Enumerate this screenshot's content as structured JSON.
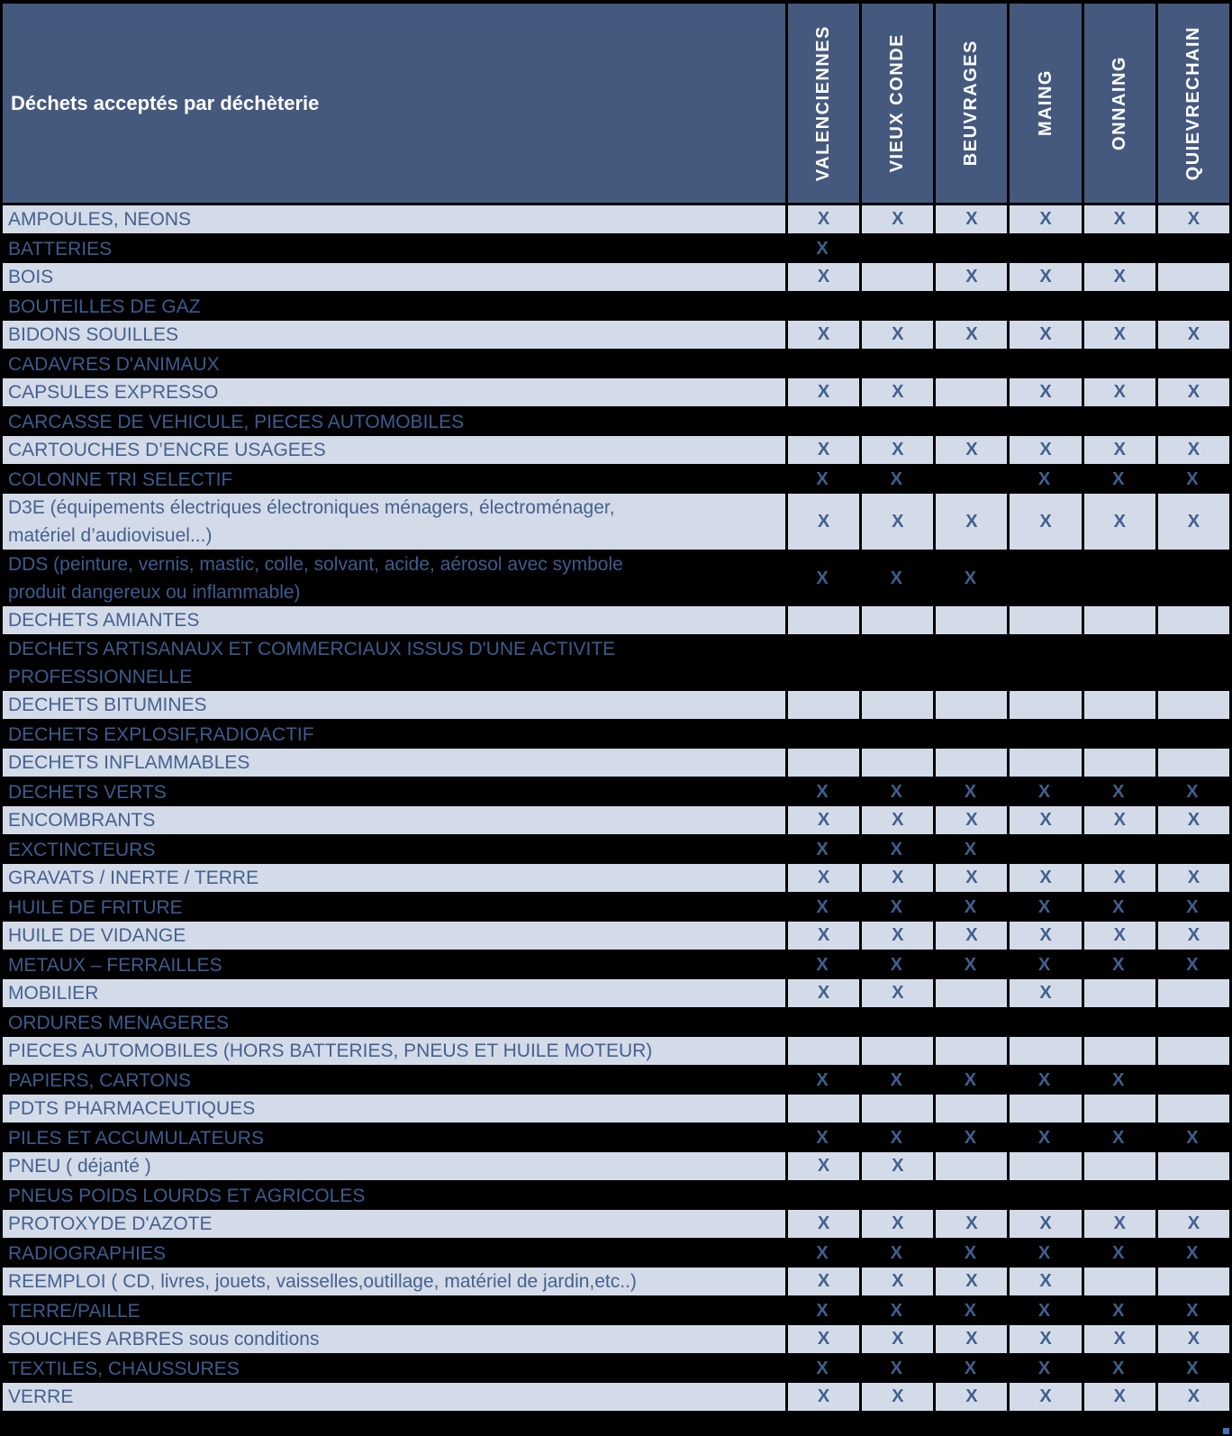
{
  "table": {
    "title": "Déchets acceptés par déchèterie",
    "mark": "X",
    "columns": [
      "VALENCIENNES",
      "VIEUX CONDE",
      "BEUVRAGES",
      "MAING",
      "ONNAING",
      "QUIEVRECHAIN"
    ],
    "colors": {
      "header_bg": "#45597E",
      "header_text": "#FFFFFF",
      "light_row_bg": "#D4DBE8",
      "dark_row_bg": "#000000",
      "label_text": "#44618F",
      "mark_text": "#40608F",
      "gridline": "#000000",
      "fill_handle": "#4472C4"
    },
    "rows": [
      {
        "label": "AMPOULES, NEONS",
        "cells": [
          "X",
          "X",
          "X",
          "X",
          "X",
          "X"
        ]
      },
      {
        "label": "BATTERIES",
        "cells": [
          "X",
          "",
          "",
          "",
          "",
          ""
        ]
      },
      {
        "label": "BOIS",
        "cells": [
          "X",
          "",
          "X",
          "X",
          "X",
          ""
        ]
      },
      {
        "label": "BOUTEILLES DE GAZ",
        "cells": [
          "",
          "",
          "",
          "",
          "",
          ""
        ]
      },
      {
        "label": "BIDONS SOUILLES",
        "cells": [
          "X",
          "X",
          "X",
          "X",
          "X",
          "X"
        ]
      },
      {
        "label": "CADAVRES D'ANIMAUX",
        "cells": [
          "",
          "",
          "",
          "",
          "",
          ""
        ]
      },
      {
        "label": "CAPSULES EXPRESSO",
        "cells": [
          "X",
          "X",
          "",
          "X",
          "X",
          "X"
        ]
      },
      {
        "label": "CARCASSE DE VEHICULE, PIECES AUTOMOBILES",
        "cells": [
          "",
          "",
          "",
          "",
          "",
          ""
        ]
      },
      {
        "label": "CARTOUCHES D’ENCRE USAGEES",
        "cells": [
          "X",
          "X",
          "X",
          "X",
          "X",
          "X"
        ]
      },
      {
        "label": "COLONNE TRI SELECTIF",
        "cells": [
          "X",
          "X",
          "",
          "X",
          "X",
          "X"
        ]
      },
      {
        "label": "D3E (équipements électriques électroniques ménagers, électroménager,\nmatériel d’audiovisuel...)",
        "cells": [
          "X",
          "X",
          "X",
          "X",
          "X",
          "X"
        ]
      },
      {
        "label": "DDS (peinture, vernis, mastic, colle, solvant, acide, aérosol avec symbole\nproduit dangereux ou inflammable)",
        "cells": [
          "X",
          "X",
          "X",
          "",
          "",
          ""
        ]
      },
      {
        "label": "DECHETS AMIANTES",
        "cells": [
          "",
          "",
          "",
          "",
          "",
          ""
        ]
      },
      {
        "label": "DECHETS ARTISANAUX ET COMMERCIAUX ISSUS D'UNE ACTIVITE\nPROFESSIONNELLE",
        "cells": [
          "",
          "",
          "",
          "",
          "",
          ""
        ]
      },
      {
        "label": "DECHETS BITUMINES",
        "cells": [
          "",
          "",
          "",
          "",
          "",
          ""
        ]
      },
      {
        "label": "DECHETS EXPLOSIF,RADIOACTIF",
        "cells": [
          "",
          "",
          "",
          "",
          "",
          ""
        ]
      },
      {
        "label": "DECHETS INFLAMMABLES",
        "cells": [
          "",
          "",
          "",
          "",
          "",
          ""
        ]
      },
      {
        "label": "DECHETS VERTS",
        "cells": [
          "X",
          "X",
          "X",
          "X",
          "X",
          "X"
        ]
      },
      {
        "label": "ENCOMBRANTS",
        "cells": [
          "X",
          "X",
          "X",
          "X",
          "X",
          "X"
        ]
      },
      {
        "label": "EXCTINCTEURS",
        "cells": [
          "X",
          "X",
          "X",
          "",
          "",
          ""
        ]
      },
      {
        "label": "GRAVATS / INERTE / TERRE",
        "cells": [
          "X",
          "X",
          "X",
          "X",
          "X",
          "X"
        ]
      },
      {
        "label": "HUILE DE FRITURE",
        "cells": [
          "X",
          "X",
          "X",
          "X",
          "X",
          "X"
        ]
      },
      {
        "label": "HUILE DE VIDANGE",
        "cells": [
          "X",
          "X",
          "X",
          "X",
          "X",
          "X"
        ]
      },
      {
        "label": "METAUX – FERRAILLES",
        "cells": [
          "X",
          "X",
          "X",
          "X",
          "X",
          "X"
        ]
      },
      {
        "label": "MOBILIER",
        "cells": [
          "X",
          "X",
          "",
          "X",
          "",
          ""
        ]
      },
      {
        "label": "ORDURES MENAGERES",
        "cells": [
          "",
          "",
          "",
          "",
          "",
          ""
        ]
      },
      {
        "label": "PIECES AUTOMOBILES (HORS BATTERIES, PNEUS ET HUILE MOTEUR)",
        "cells": [
          "",
          "",
          "",
          "",
          "",
          ""
        ]
      },
      {
        "label": "PAPIERS, CARTONS",
        "cells": [
          "X",
          "X",
          "X",
          "X",
          "X",
          ""
        ]
      },
      {
        "label": "PDTS PHARMACEUTIQUES",
        "cells": [
          "",
          "",
          "",
          "",
          "",
          ""
        ]
      },
      {
        "label": "PILES ET ACCUMULATEURS",
        "cells": [
          "X",
          "X",
          "X",
          "X",
          "X",
          "X"
        ]
      },
      {
        "label": "PNEU ( déjanté )",
        "cells": [
          "X",
          "X",
          "",
          "",
          "",
          ""
        ]
      },
      {
        "label": "PNEUS POIDS LOURDS ET AGRICOLES",
        "cells": [
          "",
          "",
          "",
          "",
          "",
          ""
        ]
      },
      {
        "label": "PROTOXYDE D'AZOTE",
        "cells": [
          "X",
          "X",
          "X",
          "X",
          "X",
          "X"
        ]
      },
      {
        "label": "RADIOGRAPHIES",
        "cells": [
          "X",
          "X",
          "X",
          "X",
          "X",
          "X"
        ]
      },
      {
        "label": "REEMPLOI ( CD, livres, jouets, vaisselles,outillage, matériel de jardin,etc..)",
        "cells": [
          "X",
          "X",
          "X",
          "X",
          "",
          ""
        ]
      },
      {
        "label": "TERRE/PAILLE",
        "cells": [
          "X",
          "X",
          "X",
          "X",
          "X",
          "X"
        ]
      },
      {
        "label": "SOUCHES ARBRES sous conditions",
        "cells": [
          "X",
          "X",
          "X",
          "X",
          "X",
          "X"
        ]
      },
      {
        "label": "TEXTILES, CHAUSSURES",
        "cells": [
          "X",
          "X",
          "X",
          "X",
          "X",
          "X"
        ]
      },
      {
        "label": "VERRE",
        "cells": [
          "X",
          "X",
          "X",
          "X",
          "X",
          "X"
        ]
      }
    ]
  }
}
